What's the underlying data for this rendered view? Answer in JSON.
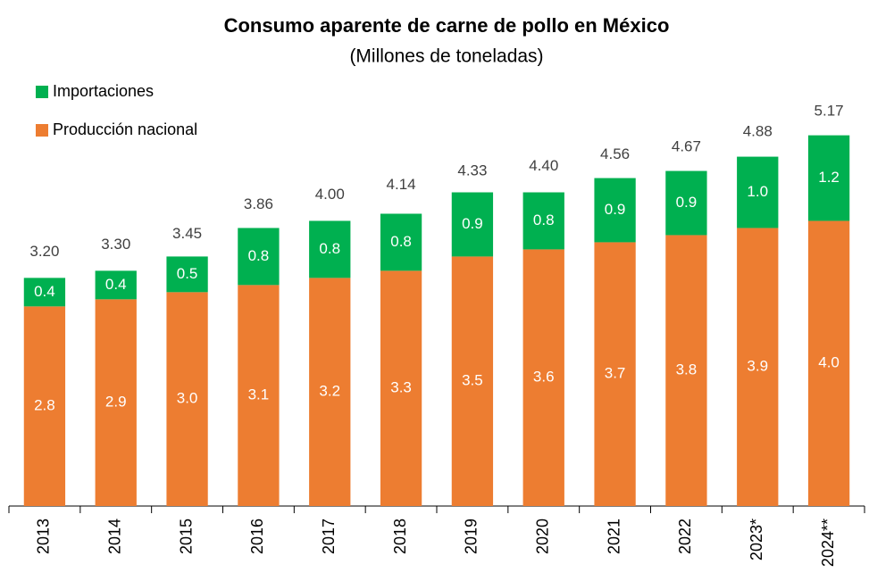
{
  "chart_data": {
    "type": "bar",
    "stacked": true,
    "title": "Consumo aparente de carne de pollo en México",
    "subtitle": "(Millones de toneladas)",
    "categories": [
      "2013",
      "2014",
      "2015",
      "2016",
      "2017",
      "2018",
      "2019",
      "2020",
      "2021",
      "2022",
      "2023*",
      "2024**"
    ],
    "series": [
      {
        "name": "Producción nacional",
        "color": "#ED7D31",
        "values": [
          2.8,
          2.9,
          3.0,
          3.1,
          3.2,
          3.3,
          3.5,
          3.6,
          3.7,
          3.8,
          3.9,
          4.0
        ],
        "value_labels": [
          "2.8",
          "2.9",
          "3.0",
          "3.1",
          "3.2",
          "3.3",
          "3.5",
          "3.6",
          "3.7",
          "3.8",
          "3.9",
          "4.0"
        ]
      },
      {
        "name": "Importaciones",
        "color": "#00B050",
        "values": [
          0.4,
          0.4,
          0.5,
          0.8,
          0.8,
          0.8,
          0.9,
          0.8,
          0.9,
          0.9,
          1.0,
          1.2
        ],
        "value_labels": [
          "0.4",
          "0.4",
          "0.5",
          "0.8",
          "0.8",
          "0.8",
          "0.9",
          "0.8",
          "0.9",
          "0.9",
          "1.0",
          "1.2"
        ]
      }
    ],
    "totals": {
      "values": [
        3.2,
        3.3,
        3.45,
        3.86,
        4.0,
        4.14,
        4.33,
        4.4,
        4.56,
        4.67,
        4.88,
        5.17
      ],
      "value_labels": [
        "3.20",
        "3.30",
        "3.45",
        "3.86",
        "4.00",
        "4.14",
        "4.33",
        "4.40",
        "4.56",
        "4.67",
        "4.88",
        "5.17"
      ]
    },
    "legend": "top-left"
  }
}
